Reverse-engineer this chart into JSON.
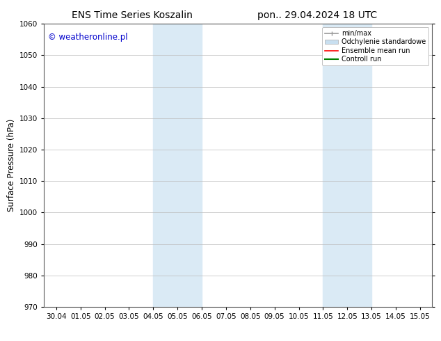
{
  "title_left": "ENS Time Series Koszalin",
  "title_right": "pon.. 29.04.2024 18 UTC",
  "ylabel": "Surface Pressure (hPa)",
  "ylim": [
    970,
    1060
  ],
  "yticks": [
    970,
    980,
    990,
    1000,
    1010,
    1020,
    1030,
    1040,
    1050,
    1060
  ],
  "xtick_labels": [
    "30.04",
    "01.05",
    "02.05",
    "03.05",
    "04.05",
    "05.05",
    "06.05",
    "07.05",
    "08.05",
    "09.05",
    "10.05",
    "11.05",
    "12.05",
    "13.05",
    "14.05",
    "15.05"
  ],
  "xtick_positions": [
    0,
    1,
    2,
    3,
    4,
    5,
    6,
    7,
    8,
    9,
    10,
    11,
    12,
    13,
    14,
    15
  ],
  "xlim": [
    -0.5,
    15.5
  ],
  "shaded_bands": [
    {
      "x_start": 4.0,
      "x_end": 6.0,
      "color": "#daeaf5"
    },
    {
      "x_start": 11.0,
      "x_end": 13.0,
      "color": "#daeaf5"
    }
  ],
  "watermark_text": "© weatheronline.pl",
  "watermark_color": "#0000cc",
  "bg_color": "#ffffff",
  "grid_color": "#bbbbbb",
  "legend_entries": [
    {
      "label": "min/max",
      "color": "#999999",
      "lw": 1.2
    },
    {
      "label": "Odchylenie standardowe",
      "color": "#c8dff0",
      "lw": 8
    },
    {
      "label": "Ensemble mean run",
      "color": "#ff0000",
      "lw": 1.2
    },
    {
      "label": "Controll run",
      "color": "#008000",
      "lw": 1.5
    }
  ],
  "title_fontsize": 10,
  "tick_fontsize": 7.5,
  "label_fontsize": 8.5,
  "watermark_fontsize": 8.5
}
